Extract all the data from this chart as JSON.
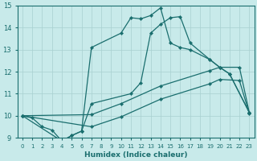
{
  "xlabel": "Humidex (Indice chaleur)",
  "bg_color": "#c8eaea",
  "grid_color": "#a8d0d0",
  "line_color": "#1a6e6e",
  "xlim": [
    -0.5,
    23.5
  ],
  "ylim": [
    9,
    15
  ],
  "xticks": [
    0,
    1,
    2,
    3,
    4,
    5,
    6,
    7,
    8,
    9,
    10,
    11,
    12,
    13,
    14,
    15,
    16,
    17,
    18,
    19,
    20,
    21,
    22,
    23
  ],
  "yticks": [
    9,
    10,
    11,
    12,
    13,
    14,
    15
  ],
  "series": [
    {
      "x": [
        0,
        1,
        2,
        3,
        4,
        5,
        6,
        7,
        11,
        12,
        13,
        14,
        15,
        16,
        17,
        19,
        20,
        21,
        23
      ],
      "y": [
        10.0,
        9.9,
        9.5,
        9.35,
        8.85,
        9.1,
        9.3,
        10.55,
        11.0,
        11.5,
        13.75,
        14.15,
        14.45,
        14.5,
        13.3,
        12.55,
        12.2,
        11.9,
        10.15
      ]
    },
    {
      "x": [
        0,
        4,
        5,
        6,
        7,
        10,
        11,
        12,
        13,
        14,
        15,
        16,
        17,
        19,
        20,
        21,
        23
      ],
      "y": [
        10.0,
        8.85,
        9.1,
        9.3,
        13.1,
        13.75,
        14.45,
        14.4,
        14.55,
        14.9,
        13.3,
        13.1,
        13.0,
        12.55,
        12.2,
        11.9,
        10.15
      ]
    },
    {
      "x": [
        0,
        7,
        10,
        14,
        19,
        20,
        22,
        23
      ],
      "y": [
        10.0,
        10.05,
        10.55,
        11.35,
        12.05,
        12.2,
        12.2,
        10.15
      ]
    },
    {
      "x": [
        0,
        7,
        10,
        14,
        19,
        20,
        22,
        23
      ],
      "y": [
        10.0,
        9.5,
        9.95,
        10.75,
        11.45,
        11.65,
        11.6,
        10.1
      ]
    }
  ]
}
